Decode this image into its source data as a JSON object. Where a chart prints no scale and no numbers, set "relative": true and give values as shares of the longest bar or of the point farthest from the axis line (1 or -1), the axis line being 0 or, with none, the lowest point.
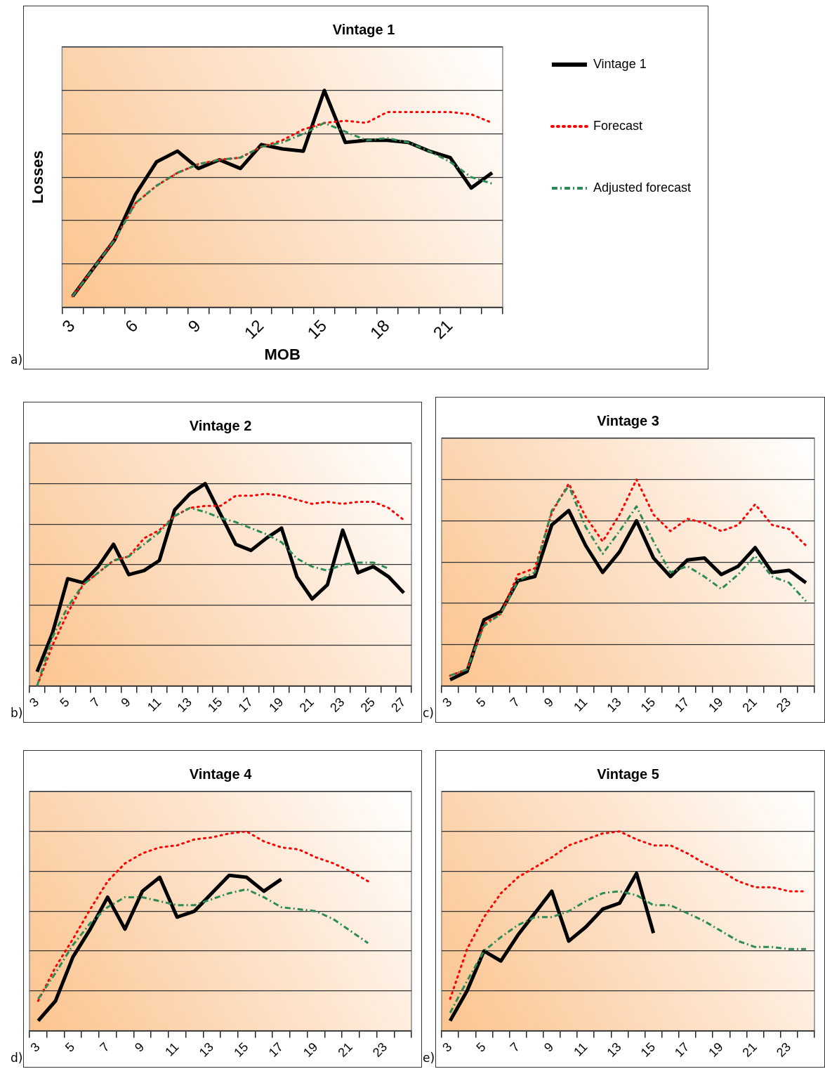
{
  "chart_data": [
    {
      "type": "line",
      "title": "Vintage 1",
      "xlabel": "MOB",
      "ylabel": "Losses",
      "relative": true,
      "grid": "y",
      "legend": "right",
      "marker": "none",
      "annotations": [
        "a)"
      ],
      "categories": [
        "3",
        null,
        null,
        "6",
        null,
        null,
        "9",
        null,
        null,
        "12",
        null,
        null,
        "15",
        null,
        null,
        "18",
        null,
        null,
        "21",
        null,
        null
      ],
      "series": [
        {
          "name": "Vintage 1",
          "color": "#000000",
          "line_style": "solid",
          "values": [
            0.05,
            0.18,
            0.31,
            0.52,
            0.67,
            0.72,
            0.64,
            0.68,
            0.64,
            0.75,
            0.73,
            0.72,
            1,
            0.76,
            0.77,
            0.77,
            0.76,
            0.72,
            0.69,
            0.55,
            0.62
          ]
        },
        {
          "name": "Forecast",
          "color": "#ff0000",
          "line_style": "dotted",
          "values": [
            0.05,
            0.18,
            0.31,
            0.48,
            0.56,
            0.62,
            0.66,
            0.68,
            0.69,
            0.74,
            0.77,
            0.82,
            0.85,
            0.86,
            0.85,
            0.9,
            0.9,
            0.9,
            0.9,
            0.89,
            0.85
          ]
        },
        {
          "name": "Adjusted forecast",
          "color": "#2e8b57",
          "line_style": "dashed",
          "values": [
            0.05,
            0.18,
            0.31,
            0.48,
            0.56,
            0.62,
            0.66,
            0.68,
            0.69,
            0.74,
            0.76,
            0.8,
            0.85,
            0.81,
            0.77,
            0.78,
            0.76,
            0.72,
            0.67,
            0.6,
            0.57
          ]
        }
      ]
    },
    {
      "type": "line",
      "title": "Vintage 2",
      "relative": true,
      "grid": "y",
      "marker": "none",
      "annotations": [
        "b)"
      ],
      "categories": [
        "3",
        null,
        "5",
        null,
        "7",
        null,
        "9",
        null,
        "11",
        null,
        "13",
        null,
        "15",
        null,
        "17",
        null,
        "19",
        null,
        "21",
        null,
        "23",
        null,
        "25",
        null,
        "27"
      ],
      "series": [
        {
          "color": "#000000",
          "line_style": "solid",
          "values": [
            0.07,
            0.26,
            0.53,
            0.51,
            0.59,
            0.7,
            0.55,
            0.57,
            0.62,
            0.87,
            0.95,
            1,
            0.85,
            0.7,
            0.67,
            0.73,
            0.78,
            0.54,
            0.43,
            0.5,
            0.77,
            0.56,
            0.59,
            0.54,
            0.46
          ]
        },
        {
          "color": "#ff0000",
          "line_style": "dotted",
          "values": [
            0,
            0.2,
            0.36,
            0.5,
            0.56,
            0.62,
            0.64,
            0.73,
            0.77,
            0.84,
            0.88,
            0.89,
            0.89,
            0.94,
            0.94,
            0.95,
            0.94,
            0.92,
            0.9,
            0.91,
            0.9,
            0.91,
            0.91,
            0.88,
            0.82
          ]
        },
        {
          "color": "#2e8b57",
          "line_style": "dashed",
          "values": [
            0,
            0.24,
            0.39,
            0.5,
            0.56,
            0.62,
            0.64,
            0.7,
            0.76,
            0.84,
            0.88,
            0.86,
            0.83,
            0.81,
            0.78,
            0.75,
            0.71,
            0.63,
            0.59,
            0.57,
            0.6,
            0.61,
            0.61,
            0.58,
            null
          ]
        }
      ]
    },
    {
      "type": "line",
      "title": "Vintage 3",
      "relative": true,
      "grid": "y",
      "marker": "none",
      "annotations": [
        "c)"
      ],
      "categories": [
        "3",
        null,
        "5",
        null,
        "7",
        null,
        "9",
        null,
        "11",
        null,
        "13",
        null,
        "15",
        null,
        "17",
        null,
        "19",
        null,
        "21",
        null,
        "23",
        null
      ],
      "series": [
        {
          "color": "#000000",
          "line_style": "solid",
          "values": [
            0.03,
            0.07,
            0.32,
            0.36,
            0.51,
            0.53,
            0.78,
            0.85,
            0.68,
            0.55,
            0.65,
            0.8,
            0.62,
            0.53,
            0.61,
            0.62,
            0.54,
            0.58,
            0.67,
            0.55,
            0.56,
            0.5
          ]
        },
        {
          "color": "#ff0000",
          "line_style": "dotted",
          "values": [
            0.05,
            0.08,
            0.3,
            0.35,
            0.54,
            0.57,
            0.84,
            0.98,
            0.82,
            0.7,
            0.83,
            1,
            0.83,
            0.75,
            0.81,
            0.79,
            0.75,
            0.78,
            0.88,
            0.78,
            0.76,
            0.68
          ]
        },
        {
          "color": "#2e8b57",
          "line_style": "dashed",
          "values": [
            0.05,
            0.08,
            0.29,
            0.35,
            0.51,
            0.55,
            0.85,
            0.97,
            0.77,
            0.64,
            0.75,
            0.87,
            0.7,
            0.55,
            0.58,
            0.53,
            0.47,
            0.54,
            0.63,
            0.53,
            0.5,
            0.41
          ]
        }
      ]
    },
    {
      "type": "line",
      "title": "Vintage 4",
      "relative": true,
      "grid": "y",
      "marker": "none",
      "annotations": [
        "d)"
      ],
      "categories": [
        "3",
        null,
        "5",
        null,
        "7",
        null,
        "9",
        null,
        "11",
        null,
        "13",
        null,
        "15",
        null,
        "17",
        null,
        "19",
        null,
        "21",
        null,
        "23",
        null
      ],
      "series": [
        {
          "color": "#000000",
          "line_style": "solid",
          "values": [
            0.05,
            0.15,
            0.37,
            0.51,
            0.67,
            0.51,
            0.7,
            0.77,
            0.57,
            0.6,
            0.69,
            0.78,
            0.77,
            0.7,
            0.76,
            null,
            null,
            null,
            null,
            null,
            null,
            null
          ]
        },
        {
          "color": "#ff0000",
          "line_style": "dotted",
          "values": [
            0.15,
            0.32,
            0.46,
            0.61,
            0.75,
            0.84,
            0.89,
            0.92,
            0.93,
            0.96,
            0.97,
            0.99,
            1,
            0.95,
            0.92,
            0.91,
            0.87,
            0.84,
            0.8,
            0.75,
            null,
            null
          ]
        },
        {
          "color": "#2e8b57",
          "line_style": "dashed",
          "values": [
            0.16,
            0.29,
            0.43,
            0.54,
            0.62,
            0.67,
            0.67,
            0.65,
            0.63,
            0.63,
            0.66,
            0.69,
            0.71,
            0.67,
            0.62,
            0.61,
            0.6,
            0.56,
            0.5,
            0.44,
            null,
            null
          ]
        }
      ]
    },
    {
      "type": "line",
      "title": "Vintage 5",
      "relative": true,
      "grid": "y",
      "marker": "none",
      "annotations": [
        "e)"
      ],
      "categories": [
        "3",
        null,
        "5",
        null,
        "7",
        null,
        "9",
        null,
        "11",
        null,
        "13",
        null,
        "15",
        null,
        "17",
        null,
        "19",
        null,
        "21",
        null,
        "23",
        null
      ],
      "series": [
        {
          "color": "#000000",
          "line_style": "solid",
          "values": [
            0.05,
            0.2,
            0.4,
            0.35,
            0.48,
            0.59,
            0.7,
            0.45,
            0.52,
            0.61,
            0.64,
            0.79,
            0.49,
            null,
            null,
            null,
            null,
            null,
            null,
            null,
            null,
            null
          ]
        },
        {
          "color": "#ff0000",
          "line_style": "dotted",
          "values": [
            0.16,
            0.41,
            0.57,
            0.69,
            0.77,
            0.82,
            0.87,
            0.93,
            0.96,
            0.99,
            1,
            0.96,
            0.93,
            0.93,
            0.89,
            0.84,
            0.8,
            0.75,
            0.72,
            0.72,
            0.7,
            0.7
          ]
        },
        {
          "color": "#2e8b57",
          "line_style": "dashed",
          "values": [
            0.09,
            0.25,
            0.4,
            0.47,
            0.53,
            0.57,
            0.57,
            0.6,
            0.65,
            0.69,
            0.7,
            0.68,
            0.63,
            0.63,
            0.59,
            0.55,
            0.5,
            0.45,
            0.42,
            0.42,
            0.41,
            0.41
          ]
        }
      ]
    }
  ]
}
